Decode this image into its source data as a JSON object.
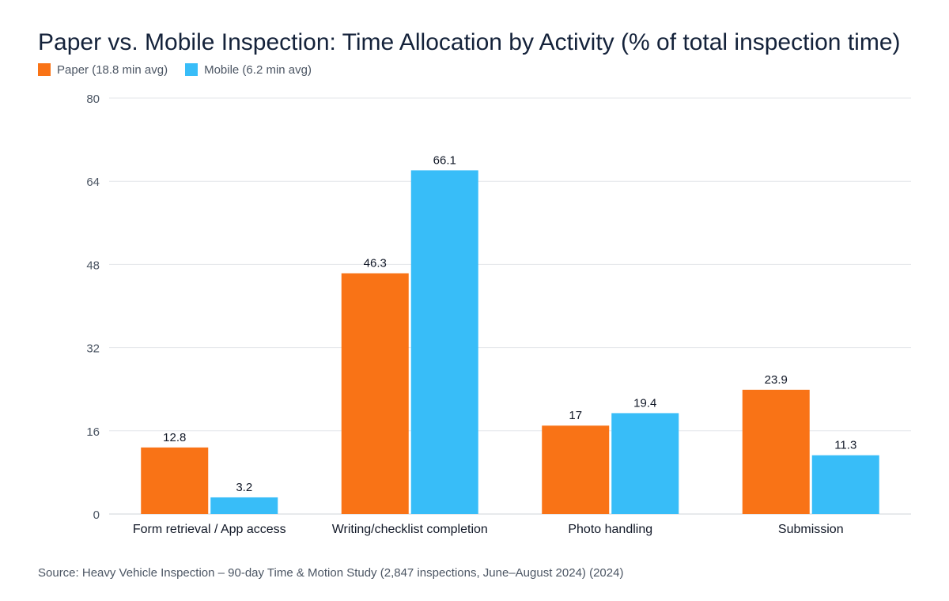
{
  "title": "Paper vs. Mobile Inspection: Time Allocation by Activity (% of total inspection time)",
  "source": "Source: Heavy Vehicle Inspection – 90-day Time & Motion Study (2,847 inspections, June–August 2024) (2024)",
  "chart_data": {
    "type": "bar",
    "title": "Paper vs. Mobile Inspection: Time Allocation by Activity (% of total inspection time)",
    "categories": [
      "Form retrieval / App access",
      "Writing/checklist completion",
      "Photo handling",
      "Submission"
    ],
    "series": [
      {
        "name": "Paper (18.8 min avg)",
        "color": "#f97316",
        "values": [
          12.8,
          46.3,
          17,
          23.9
        ]
      },
      {
        "name": "Mobile (6.2 min avg)",
        "color": "#38bdf8",
        "values": [
          3.2,
          66.1,
          19.4,
          11.3
        ]
      }
    ],
    "ylim": [
      0,
      80
    ],
    "yticks": [
      0,
      16,
      32,
      48,
      64,
      80
    ],
    "grid": true,
    "legend": "top-left",
    "xlabel": "",
    "ylabel": ""
  }
}
